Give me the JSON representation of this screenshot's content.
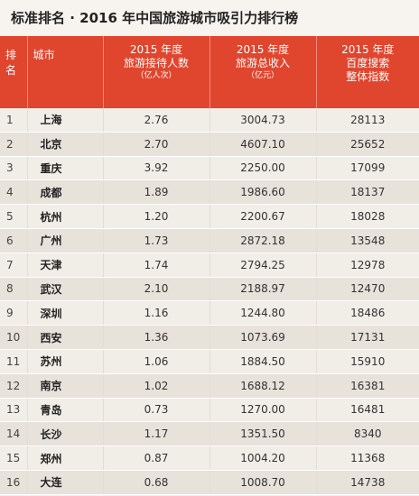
{
  "title": "标准排名 · 2016 年中国旅游城市吸引力排行榜",
  "columns": {
    "rank": "排名",
    "city": "城市",
    "visitors": {
      "line1": "2015 年度",
      "line2": "旅游接待人数",
      "unit": "（亿人次）"
    },
    "income": {
      "line1": "2015 年度",
      "line2": "旅游总收入",
      "unit": "（亿元）"
    },
    "index": {
      "line1": "2015 年度",
      "line2": "百度搜索",
      "line3": "整体指数"
    }
  },
  "rows": [
    {
      "rank": "1",
      "city": "上海",
      "visitors": "2.76",
      "income": "3004.73",
      "index": "28113"
    },
    {
      "rank": "2",
      "city": "北京",
      "visitors": "2.70",
      "income": "4607.10",
      "index": "25652"
    },
    {
      "rank": "3",
      "city": "重庆",
      "visitors": "3.92",
      "income": "2250.00",
      "index": "17099"
    },
    {
      "rank": "4",
      "city": "成都",
      "visitors": "1.89",
      "income": "1986.60",
      "index": "18137"
    },
    {
      "rank": "5",
      "city": "杭州",
      "visitors": "1.20",
      "income": "2200.67",
      "index": "18028"
    },
    {
      "rank": "6",
      "city": "广州",
      "visitors": "1.73",
      "income": "2872.18",
      "index": "13548"
    },
    {
      "rank": "7",
      "city": "天津",
      "visitors": "1.74",
      "income": "2794.25",
      "index": "12978"
    },
    {
      "rank": "8",
      "city": "武汉",
      "visitors": "2.10",
      "income": "2188.97",
      "index": "12470"
    },
    {
      "rank": "9",
      "city": "深圳",
      "visitors": "1.16",
      "income": "1244.80",
      "index": "18486"
    },
    {
      "rank": "10",
      "city": "西安",
      "visitors": "1.36",
      "income": "1073.69",
      "index": "17131"
    },
    {
      "rank": "11",
      "city": "苏州",
      "visitors": "1.06",
      "income": "1884.50",
      "index": "15910"
    },
    {
      "rank": "12",
      "city": "南京",
      "visitors": "1.02",
      "income": "1688.12",
      "index": "16381"
    },
    {
      "rank": "13",
      "city": "青岛",
      "visitors": "0.73",
      "income": "1270.00",
      "index": "16481"
    },
    {
      "rank": "14",
      "city": "长沙",
      "visitors": "1.17",
      "income": "1351.50",
      "index": "8340"
    },
    {
      "rank": "15",
      "city": "郑州",
      "visitors": "0.87",
      "income": "1004.20",
      "index": "11368"
    },
    {
      "rank": "16",
      "city": "大连",
      "visitors": "0.68",
      "income": "1008.70",
      "index": "14738"
    }
  ]
}
